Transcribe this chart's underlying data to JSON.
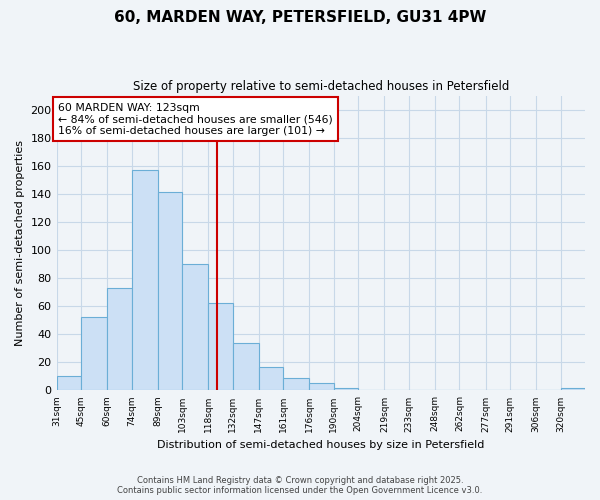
{
  "title": "60, MARDEN WAY, PETERSFIELD, GU31 4PW",
  "subtitle": "Size of property relative to semi-detached houses in Petersfield",
  "xlabel": "Distribution of semi-detached houses by size in Petersfield",
  "ylabel": "Number of semi-detached properties",
  "bin_labels": [
    "31sqm",
    "45sqm",
    "60sqm",
    "74sqm",
    "89sqm",
    "103sqm",
    "118sqm",
    "132sqm",
    "147sqm",
    "161sqm",
    "176sqm",
    "190sqm",
    "204sqm",
    "219sqm",
    "233sqm",
    "248sqm",
    "262sqm",
    "277sqm",
    "291sqm",
    "306sqm",
    "320sqm"
  ],
  "bin_edges": [
    31,
    45,
    60,
    74,
    89,
    103,
    118,
    132,
    147,
    161,
    176,
    190,
    204,
    219,
    233,
    248,
    262,
    277,
    291,
    306,
    320
  ],
  "bar_heights": [
    10,
    52,
    73,
    157,
    141,
    90,
    62,
    34,
    17,
    9,
    5,
    2,
    0,
    0,
    0,
    0,
    0,
    0,
    0,
    0,
    2
  ],
  "bar_color": "#cce0f5",
  "bar_edge_color": "#6baed6",
  "marker_value": 123,
  "marker_color": "#cc0000",
  "ylim": [
    0,
    210
  ],
  "yticks": [
    0,
    20,
    40,
    60,
    80,
    100,
    120,
    140,
    160,
    180,
    200
  ],
  "annotation_title": "60 MARDEN WAY: 123sqm",
  "annotation_line1": "← 84% of semi-detached houses are smaller (546)",
  "annotation_line2": "16% of semi-detached houses are larger (101) →",
  "footnote1": "Contains HM Land Registry data © Crown copyright and database right 2025.",
  "footnote2": "Contains public sector information licensed under the Open Government Licence v3.0.",
  "bg_color": "#f0f4f8",
  "grid_color": "#c8d8e8"
}
